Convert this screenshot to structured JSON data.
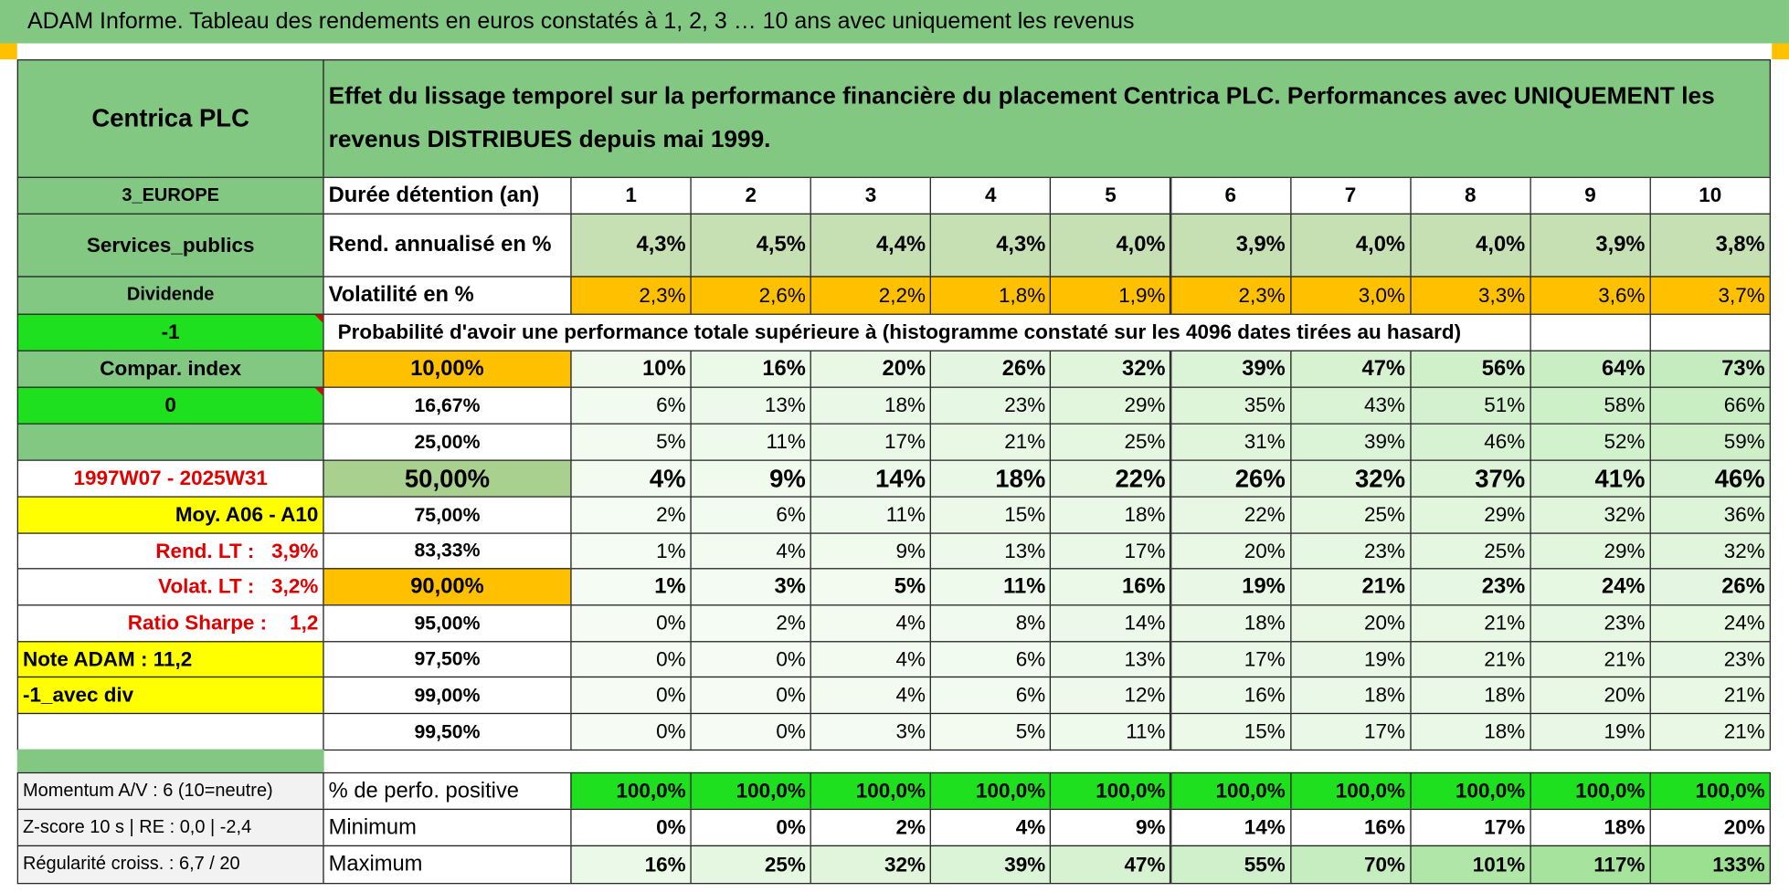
{
  "title": "ADAM Informe. Tableau des rendements en euros constatés à 1, 2, 3 … 10 ans avec uniquement les revenus",
  "header": {
    "name": "Centrica PLC",
    "description": "Effet du lissage temporel sur la performance financière du placement Centrica PLC. Performances avec UNIQUEMENT les revenus DISTRIBUES depuis mai 1999."
  },
  "rows": [
    {
      "left": "3_EUROPE",
      "label": "Durée détention (an)",
      "cells": [
        "1",
        "2",
        "3",
        "4",
        "5",
        "6",
        "7",
        "8",
        "9",
        "10"
      ]
    },
    {
      "left": "Services_publics",
      "label": "Rend. annualisé en %",
      "cells": [
        "4,3%",
        "4,5%",
        "4,4%",
        "4,3%",
        "4,0%",
        "3,9%",
        "4,0%",
        "4,0%",
        "3,9%",
        "3,8%"
      ]
    },
    {
      "left": "Dividende",
      "label": "Volatilité en %",
      "cells": [
        "2,3%",
        "2,6%",
        "2,2%",
        "1,8%",
        "1,9%",
        "2,3%",
        "3,0%",
        "3,3%",
        "3,6%",
        "3,7%"
      ]
    },
    {
      "left": "-1",
      "label": "Probabilité d'avoir une performance totale supérieure à (histogramme constaté sur les 4096 dates tirées au hasard)"
    },
    {
      "left": "Compar. index",
      "label": "10,00%",
      "cells": [
        "10%",
        "16%",
        "20%",
        "26%",
        "32%",
        "39%",
        "47%",
        "56%",
        "64%",
        "73%"
      ]
    },
    {
      "left": "0",
      "label": "16,67%",
      "cells": [
        "6%",
        "13%",
        "18%",
        "23%",
        "29%",
        "35%",
        "43%",
        "51%",
        "58%",
        "66%"
      ]
    },
    {
      "label": "25,00%",
      "cells": [
        "5%",
        "11%",
        "17%",
        "21%",
        "25%",
        "31%",
        "39%",
        "46%",
        "52%",
        "59%"
      ]
    },
    {
      "left": "1997W07 - 2025W31",
      "label": "50,00%",
      "cells": [
        "4%",
        "9%",
        "14%",
        "18%",
        "22%",
        "26%",
        "32%",
        "37%",
        "41%",
        "46%"
      ]
    },
    {
      "left": "Moy. A06 - A10",
      "label": "75,00%",
      "cells": [
        "2%",
        "6%",
        "11%",
        "15%",
        "18%",
        "22%",
        "25%",
        "29%",
        "32%",
        "36%"
      ]
    },
    {
      "left": "Rend. LT :   3,9%",
      "label": "83,33%",
      "cells": [
        "1%",
        "4%",
        "9%",
        "13%",
        "17%",
        "20%",
        "23%",
        "25%",
        "29%",
        "32%"
      ]
    },
    {
      "left": "Volat. LT :   3,2%",
      "label": "90,00%",
      "cells": [
        "1%",
        "3%",
        "5%",
        "11%",
        "16%",
        "19%",
        "21%",
        "23%",
        "24%",
        "26%"
      ]
    },
    {
      "left": "Ratio Sharpe :    1,2",
      "label": "95,00%",
      "cells": [
        "0%",
        "2%",
        "4%",
        "8%",
        "14%",
        "18%",
        "20%",
        "21%",
        "23%",
        "24%"
      ]
    },
    {
      "left": "Note ADAM : 11,2",
      "label": "97,50%",
      "cells": [
        "0%",
        "0%",
        "4%",
        "6%",
        "13%",
        "17%",
        "19%",
        "21%",
        "21%",
        "23%"
      ]
    },
    {
      "left": "-1_avec div",
      "label": "99,00%",
      "cells": [
        "0%",
        "0%",
        "4%",
        "6%",
        "12%",
        "16%",
        "18%",
        "18%",
        "20%",
        "21%"
      ]
    },
    {
      "label": "99,50%",
      "cells": [
        "0%",
        "0%",
        "3%",
        "5%",
        "11%",
        "15%",
        "17%",
        "18%",
        "19%",
        "21%"
      ]
    }
  ],
  "footer_rows": [
    {
      "left": "Momentum A/V : 6 (10=neutre)",
      "label": "% de perfo. positive",
      "cells": [
        "100,0%",
        "100,0%",
        "100,0%",
        "100,0%",
        "100,0%",
        "100,0%",
        "100,0%",
        "100,0%",
        "100,0%",
        "100,0%"
      ]
    },
    {
      "left": "Z-score 10 s | RE : 0,0 | -2,4",
      "label": "Minimum",
      "cells": [
        "0%",
        "0%",
        "2%",
        "4%",
        "9%",
        "14%",
        "16%",
        "17%",
        "18%",
        "20%"
      ]
    },
    {
      "left": "Régularité croiss. : 6,7 / 20",
      "label": "Maximum",
      "cells": [
        "16%",
        "25%",
        "32%",
        "39%",
        "47%",
        "55%",
        "70%",
        "101%",
        "117%",
        "133%"
      ]
    }
  ]
}
